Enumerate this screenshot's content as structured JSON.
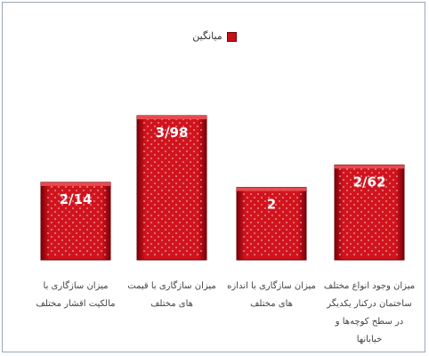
{
  "chart_data": {
    "type": "bar",
    "categories": [
      "میزان سازگاری با مالکیت اقشار مختلف",
      "میزان سازگاری با قیمت های مختلف",
      "میزان سازگاری با اندازه های مختلف",
      "میزان وجود انواع مختلف ساختمان درکنار یکدیگر در سطح کوچه‌ها و خیابانها"
    ],
    "series": [
      {
        "name": "میانگین",
        "color": "#c8101a",
        "values": [
          2.14,
          3.98,
          2,
          2.62
        ],
        "value_labels": [
          "2/14",
          "3/98",
          "2",
          "2/62"
        ]
      }
    ]
  }
}
